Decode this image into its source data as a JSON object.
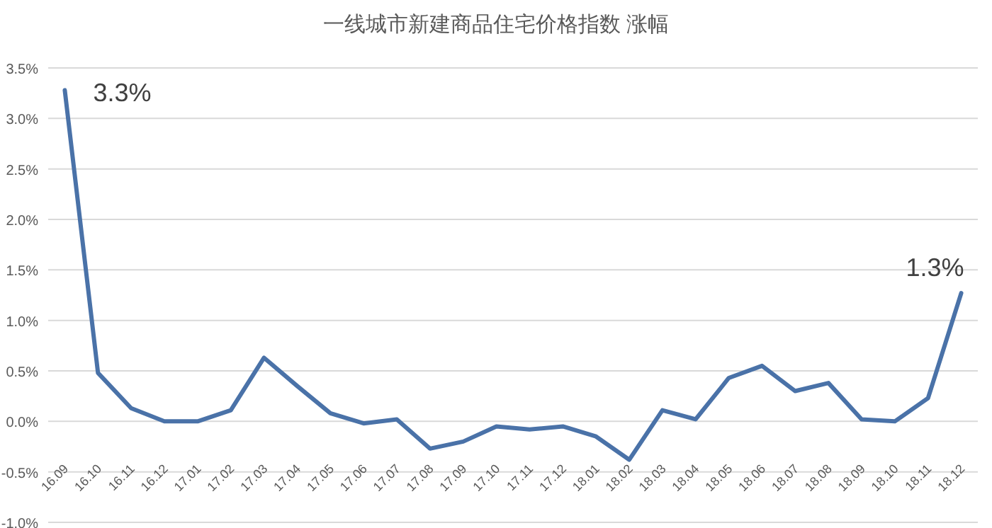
{
  "chart_data": {
    "type": "line",
    "title": "一线城市新建商品住宅价格指数 涨幅",
    "categories": [
      "16.09",
      "16.10",
      "16.11",
      "16.12",
      "17.01",
      "17.02",
      "17.03",
      "17.04",
      "17.05",
      "17.06",
      "17.07",
      "17.08",
      "17.09",
      "17.10",
      "17.11",
      "17.12",
      "18.01",
      "18.02",
      "18.03",
      "18.04",
      "18.05",
      "18.06",
      "18.07",
      "18.08",
      "18.09",
      "18.10",
      "18.11",
      "18.12"
    ],
    "series": [
      {
        "color": "#4a72a8",
        "values": [
          3.28,
          0.48,
          0.13,
          0.0,
          0.0,
          0.11,
          0.63,
          0.35,
          0.08,
          -0.02,
          0.02,
          -0.27,
          -0.2,
          -0.05,
          -0.08,
          -0.05,
          -0.15,
          -0.38,
          0.11,
          0.02,
          0.43,
          0.55,
          0.3,
          0.38,
          0.02,
          0.0,
          0.23,
          1.27
        ]
      }
    ],
    "ylim": [
      -1,
      3.5
    ],
    "yticks": [
      {
        "value": -1,
        "label": "-1.0%"
      },
      {
        "value": -0.5,
        "label": "-0.5%"
      },
      {
        "value": 0,
        "label": "0.0%"
      },
      {
        "value": 0.5,
        "label": "0.5%"
      },
      {
        "value": 1,
        "label": "1.0%"
      },
      {
        "value": 1.5,
        "label": "1.5%"
      },
      {
        "value": 2,
        "label": "2.0%"
      },
      {
        "value": 2.5,
        "label": "2.5%"
      },
      {
        "value": 3,
        "label": "3.0%"
      },
      {
        "value": 3.5,
        "label": "3.5%"
      }
    ],
    "grid": "y",
    "marker": "none",
    "line_style": "solid",
    "annotations": [
      {
        "text": "3.3%",
        "x": "16.09",
        "y": 3.28
      },
      {
        "text": "1.3%",
        "x": "18.12",
        "y": 1.27
      }
    ]
  }
}
